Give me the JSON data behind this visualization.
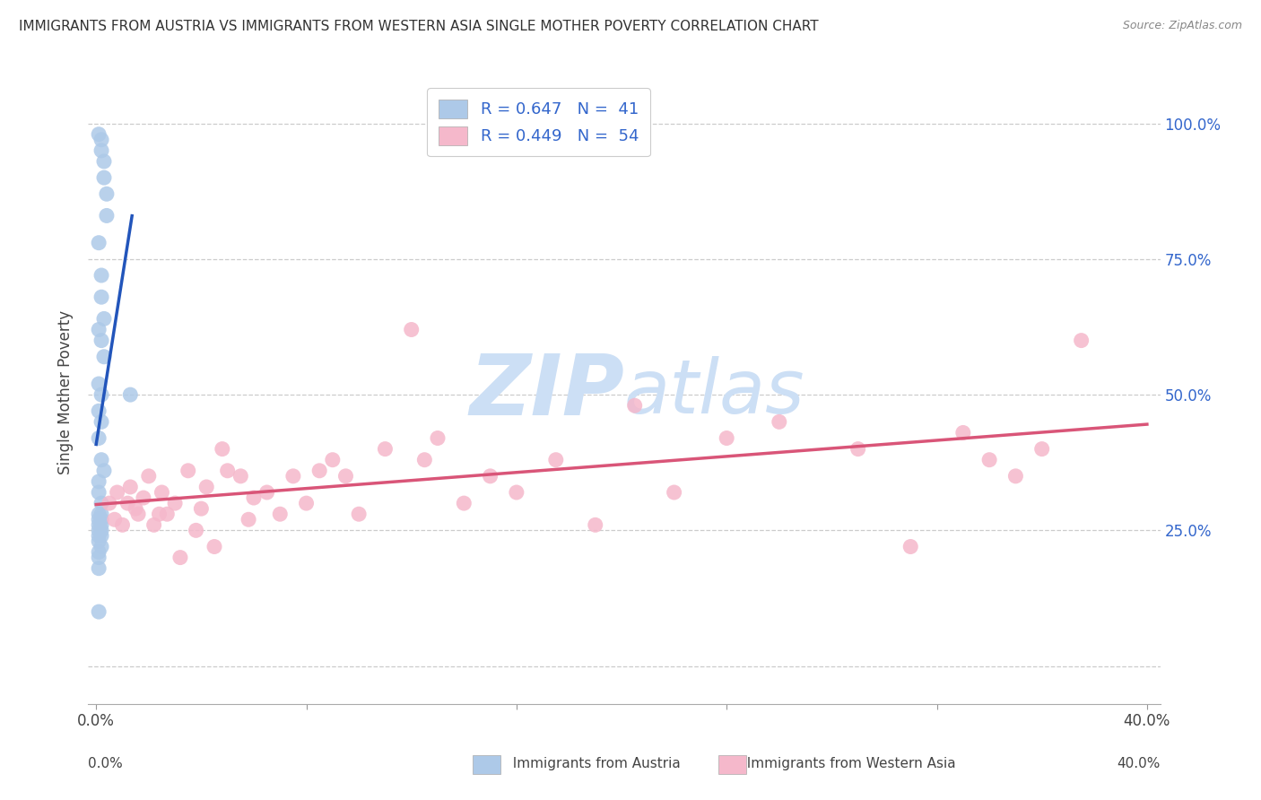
{
  "title": "IMMIGRANTS FROM AUSTRIA VS IMMIGRANTS FROM WESTERN ASIA SINGLE MOTHER POVERTY CORRELATION CHART",
  "source": "Source: ZipAtlas.com",
  "ylabel": "Single Mother Poverty",
  "legend_label1": "Immigrants from Austria",
  "legend_label2": "Immigrants from Western Asia",
  "legend_r1": "R = 0.647",
  "legend_n1": "N =  41",
  "legend_r2": "R = 0.449",
  "legend_n2": "N =  54",
  "color_blue": "#adc9e8",
  "color_pink": "#f5b8cb",
  "line_blue": "#2255bb",
  "line_pink": "#d95578",
  "watermark_zip": "ZIP",
  "watermark_atlas": "atlas",
  "watermark_color_zip": "#ccdff5",
  "watermark_color_atlas": "#ccdff5",
  "austria_x": [
    0.001,
    0.002,
    0.002,
    0.003,
    0.003,
    0.004,
    0.004,
    0.001,
    0.002,
    0.002,
    0.003,
    0.001,
    0.002,
    0.003,
    0.001,
    0.002,
    0.001,
    0.002,
    0.001,
    0.002,
    0.003,
    0.001,
    0.001,
    0.002,
    0.001,
    0.002,
    0.002,
    0.001,
    0.002,
    0.001,
    0.001,
    0.002,
    0.001,
    0.002,
    0.001,
    0.013,
    0.002,
    0.001,
    0.001,
    0.001,
    0.001
  ],
  "austria_y": [
    0.98,
    0.97,
    0.95,
    0.93,
    0.9,
    0.87,
    0.83,
    0.78,
    0.72,
    0.68,
    0.64,
    0.62,
    0.6,
    0.57,
    0.52,
    0.5,
    0.47,
    0.45,
    0.42,
    0.38,
    0.36,
    0.34,
    0.32,
    0.3,
    0.28,
    0.28,
    0.27,
    0.27,
    0.26,
    0.26,
    0.25,
    0.25,
    0.24,
    0.24,
    0.23,
    0.5,
    0.22,
    0.21,
    0.2,
    0.18,
    0.1
  ],
  "western_asia_x": [
    0.005,
    0.007,
    0.008,
    0.01,
    0.012,
    0.013,
    0.015,
    0.016,
    0.018,
    0.02,
    0.022,
    0.024,
    0.025,
    0.027,
    0.03,
    0.032,
    0.035,
    0.038,
    0.04,
    0.042,
    0.045,
    0.048,
    0.05,
    0.055,
    0.058,
    0.06,
    0.065,
    0.07,
    0.075,
    0.08,
    0.085,
    0.09,
    0.095,
    0.1,
    0.11,
    0.12,
    0.125,
    0.13,
    0.14,
    0.15,
    0.16,
    0.175,
    0.19,
    0.205,
    0.22,
    0.24,
    0.26,
    0.29,
    0.31,
    0.33,
    0.34,
    0.35,
    0.36,
    0.375
  ],
  "western_asia_y": [
    0.3,
    0.27,
    0.32,
    0.26,
    0.3,
    0.33,
    0.29,
    0.28,
    0.31,
    0.35,
    0.26,
    0.28,
    0.32,
    0.28,
    0.3,
    0.2,
    0.36,
    0.25,
    0.29,
    0.33,
    0.22,
    0.4,
    0.36,
    0.35,
    0.27,
    0.31,
    0.32,
    0.28,
    0.35,
    0.3,
    0.36,
    0.38,
    0.35,
    0.28,
    0.4,
    0.62,
    0.38,
    0.42,
    0.3,
    0.35,
    0.32,
    0.38,
    0.26,
    0.48,
    0.32,
    0.42,
    0.45,
    0.4,
    0.22,
    0.43,
    0.38,
    0.35,
    0.4,
    0.6
  ],
  "ytick_positions": [
    0.0,
    0.25,
    0.5,
    0.75,
    1.0
  ],
  "ytick_labels": [
    "",
    "25.0%",
    "50.0%",
    "75.0%",
    "100.0%"
  ],
  "xtick_positions": [
    0.0,
    0.08,
    0.16,
    0.24,
    0.32,
    0.4
  ],
  "xtick_labels": [
    "0.0%",
    "",
    "",
    "",
    "",
    "40.0%"
  ],
  "xlim": [
    -0.003,
    0.405
  ],
  "ylim": [
    -0.07,
    1.08
  ]
}
